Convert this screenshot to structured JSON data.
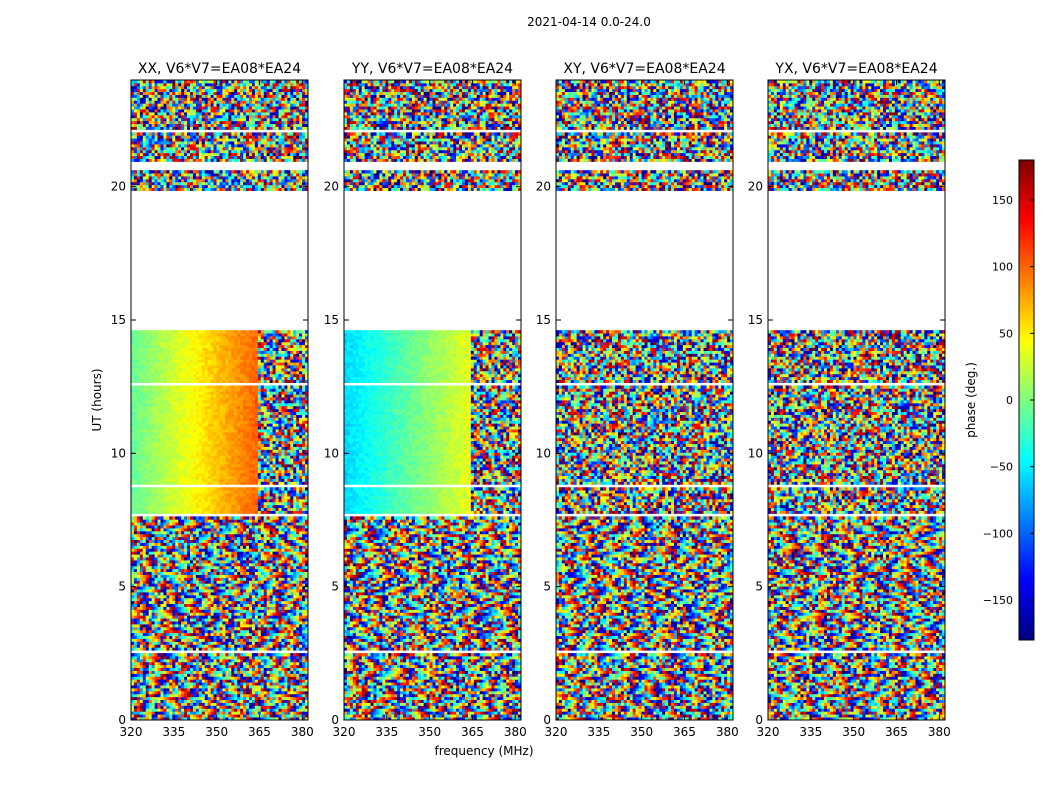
{
  "figure": {
    "suptitle": "2021-04-14 0.0-24.0",
    "ylabel": "UT (hours)",
    "xlabel": "frequency (MHz)"
  },
  "chart_data": {
    "type": "heatmap",
    "panels": [
      {
        "title": "XX, V6*V7=EA08*EA24",
        "pol": "XX"
      },
      {
        "title": "YY, V6*V7=EA08*EA24",
        "pol": "YY"
      },
      {
        "title": "XY, V6*V7=EA08*EA24",
        "pol": "XY"
      },
      {
        "title": "YX, V6*V7=EA08*EA24",
        "pol": "YX"
      }
    ],
    "xlim": [
      320,
      382
    ],
    "ylim": [
      0,
      24
    ],
    "xticks": [
      320,
      335,
      350,
      365,
      380
    ],
    "yticks": [
      0,
      5,
      10,
      15,
      20
    ],
    "colorbar": {
      "label": "phase (deg.)",
      "range": [
        -180,
        180
      ],
      "ticks": [
        -150,
        -100,
        -50,
        0,
        50,
        100,
        150
      ],
      "tick_labels": [
        "−150",
        "−100",
        "−50",
        "0",
        "50",
        "100",
        "150"
      ],
      "colormap": [
        "#00007f",
        "#0000ff",
        "#007fff",
        "#00ffff",
        "#7fff7f",
        "#ffff00",
        "#ff7f00",
        "#ff0000",
        "#7f0000"
      ]
    },
    "data_gaps_ut_hours": [
      [
        2.5,
        2.6
      ],
      [
        7.6,
        7.7
      ],
      [
        8.7,
        8.8
      ],
      [
        12.5,
        12.7
      ],
      [
        14.6,
        19.9
      ],
      [
        20.6,
        21.0
      ],
      [
        22.0,
        22.1
      ]
    ],
    "coherent_ut_hours": [
      7.7,
      14.6
    ],
    "coherent_freq_break_mhz": 364,
    "coherent_polarizations": [
      "XX",
      "YY"
    ]
  }
}
